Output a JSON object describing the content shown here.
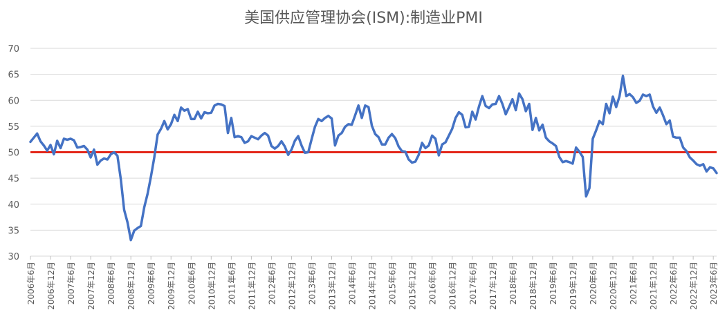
{
  "chart_data": {
    "type": "line",
    "title": "美国供应管理协会(ISM):制造业PMI",
    "ylim": [
      30,
      70
    ],
    "y_ticks": [
      "30",
      "35",
      "40",
      "45",
      "50",
      "55",
      "60",
      "65",
      "70"
    ],
    "grid": "horizontal",
    "x_tick_labels": [
      "2006年6月",
      "2006年12月",
      "2007年6月",
      "2007年12月",
      "2008年6月",
      "2008年12月",
      "2009年6月",
      "2009年12月",
      "2010年6月",
      "2010年12月",
      "2011年6月",
      "2011年12月",
      "2012年6月",
      "2012年12月",
      "2013年6月",
      "2013年12月",
      "2014年6月",
      "2014年12月",
      "2015年6月",
      "2015年12月",
      "2016年6月",
      "2016年12月",
      "2017年6月",
      "2017年12月",
      "2018年6月",
      "2018年12月",
      "2019年6月",
      "2019年12月",
      "2020年6月",
      "2020年12月",
      "2021年6月",
      "2021年12月",
      "2022年6月",
      "2022年12月",
      "2023年6月"
    ],
    "series": [
      {
        "color": "#4472C4",
        "x_start": "2006年6月",
        "values": [
          52.0,
          52.8,
          53.6,
          52.1,
          51.3,
          50.3,
          51.4,
          49.6,
          52.2,
          50.8,
          52.6,
          52.4,
          52.6,
          52.3,
          50.9,
          51.0,
          51.2,
          50.5,
          49.0,
          50.5,
          47.6,
          48.4,
          48.8,
          48.6,
          49.6,
          50.0,
          49.3,
          44.8,
          38.9,
          36.5,
          33.1,
          34.9,
          35.4,
          35.8,
          39.4,
          42.0,
          45.3,
          49.0,
          53.4,
          54.5,
          56.0,
          54.4,
          55.4,
          57.2,
          56.0,
          58.6,
          58.0,
          58.3,
          56.4,
          56.4,
          57.8,
          56.5,
          57.7,
          57.5,
          57.6,
          59.0,
          59.3,
          59.2,
          58.9,
          53.7,
          56.6,
          52.9,
          53.1,
          52.9,
          51.8,
          52.1,
          53.1,
          52.8,
          52.5,
          53.2,
          53.7,
          53.2,
          51.2,
          50.7,
          51.2,
          52.1,
          51.1,
          49.5,
          50.5,
          52.2,
          53.1,
          51.3,
          49.9,
          50.0,
          52.5,
          54.9,
          56.4,
          56.0,
          56.6,
          57.0,
          56.5,
          51.3,
          53.2,
          53.7,
          54.9,
          55.4,
          55.3,
          57.1,
          59.0,
          56.6,
          59.0,
          58.7,
          55.1,
          53.5,
          52.9,
          51.5,
          51.5,
          52.8,
          53.5,
          52.7,
          51.1,
          50.2,
          50.1,
          48.6,
          48.0,
          48.2,
          49.5,
          51.8,
          50.8,
          51.3,
          53.2,
          52.6,
          49.4,
          51.5,
          51.9,
          53.2,
          54.5,
          56.6,
          57.7,
          57.2,
          54.8,
          54.9,
          57.8,
          56.3,
          58.8,
          60.8,
          58.9,
          58.5,
          59.2,
          59.3,
          60.8,
          59.3,
          57.3,
          58.7,
          60.2,
          58.1,
          61.3,
          60.2,
          57.9,
          59.3,
          54.3,
          56.6,
          54.2,
          55.3,
          52.8,
          52.1,
          51.7,
          51.2,
          49.1,
          48.1,
          48.3,
          48.1,
          47.8,
          50.9,
          50.1,
          49.1,
          41.5,
          43.1,
          52.6,
          54.2,
          56.0,
          55.4,
          59.3,
          57.5,
          60.7,
          58.7,
          60.8,
          64.7,
          60.8,
          61.2,
          60.6,
          59.5,
          59.9,
          61.1,
          60.8,
          61.1,
          58.8,
          57.6,
          58.6,
          57.1,
          55.4,
          56.1,
          53.0,
          52.8,
          52.8,
          50.9,
          50.2,
          49.0,
          48.4,
          47.7,
          47.4,
          47.7,
          46.3,
          47.1,
          46.9,
          46.0
        ]
      },
      {
        "color": "#E32619",
        "values": [
          50,
          50
        ]
      }
    ]
  }
}
